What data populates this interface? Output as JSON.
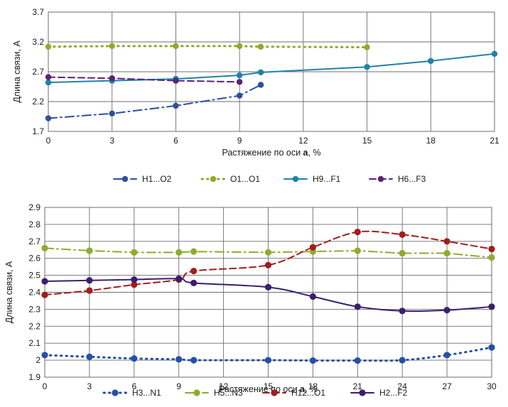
{
  "chart_data": [
    {
      "type": "line",
      "title": "",
      "xlabel_prefix": "Растяжение по оси ",
      "xlabel_axis": "a",
      "xlabel_suffix": ", %",
      "ylabel": "Длина связи, А",
      "xlim": [
        0,
        21
      ],
      "ylim": [
        1.7,
        3.7
      ],
      "xticks": [
        "0",
        "3",
        "6",
        "9",
        "12",
        "15",
        "18",
        "21"
      ],
      "yticks": [
        "1.7",
        "2.2",
        "2.7",
        "3.2",
        "3.7"
      ],
      "grid": true,
      "legend_position": "bottom",
      "series": [
        {
          "name": "H1...O2",
          "color": "#2e4f9e",
          "dash": "dashdot",
          "smooth": false,
          "x": [
            0,
            3,
            6,
            9,
            10
          ],
          "y": [
            1.92,
            2.0,
            2.13,
            2.3,
            2.48
          ]
        },
        {
          "name": "O1...O1",
          "color": "#8cac2c",
          "dash": "dot",
          "smooth": false,
          "x": [
            0,
            3,
            6,
            9,
            10,
            15
          ],
          "y": [
            3.12,
            3.13,
            3.13,
            3.13,
            3.12,
            3.11
          ]
        },
        {
          "name": "H9...F1",
          "color": "#1f82a9",
          "dash": "solid",
          "smooth": false,
          "x": [
            0,
            3,
            6,
            9,
            10,
            15,
            18,
            21
          ],
          "y": [
            2.52,
            2.55,
            2.58,
            2.64,
            2.69,
            2.78,
            2.88,
            3.0
          ]
        },
        {
          "name": "H6...F3",
          "color": "#5b2277",
          "dash": "dash",
          "smooth": false,
          "x": [
            0,
            3,
            6,
            9
          ],
          "y": [
            2.61,
            2.59,
            2.55,
            2.53
          ]
        }
      ]
    },
    {
      "type": "line",
      "title": "",
      "xlabel_prefix": "Растяжение по оси ",
      "xlabel_axis": "a",
      "xlabel_suffix": ", %",
      "ylabel": "Длина связи, А",
      "xlim": [
        0,
        30
      ],
      "ylim": [
        1.9,
        2.9
      ],
      "xticks": [
        "0",
        "3",
        "6",
        "9",
        "12",
        "15",
        "18",
        "21",
        "24",
        "27",
        "30"
      ],
      "yticks": [
        "1.9",
        "2",
        "2.1",
        "2.2",
        "2.3",
        "2.4",
        "2.5",
        "2.6",
        "2.7",
        "2.8",
        "2.9"
      ],
      "grid": true,
      "legend_position": "bottom",
      "series": [
        {
          "name": "H3...N1",
          "color": "#2450a8",
          "dash": "dot",
          "smooth": true,
          "x": [
            0,
            3,
            6,
            9,
            10,
            15,
            18,
            21,
            24,
            27,
            30
          ],
          "y": [
            2.03,
            2.02,
            2.01,
            2.005,
            2.0,
            2.0,
            1.998,
            1.998,
            2.0,
            2.03,
            2.075
          ]
        },
        {
          "name": "H5...N3",
          "color": "#8cac2c",
          "dash": "dashdot",
          "smooth": false,
          "x": [
            0,
            3,
            6,
            9,
            10,
            15,
            18,
            21,
            24,
            27,
            30
          ],
          "y": [
            2.66,
            2.645,
            2.635,
            2.635,
            2.64,
            2.635,
            2.64,
            2.645,
            2.63,
            2.63,
            2.605
          ]
        },
        {
          "name": "H12...O1",
          "color": "#a11d1d",
          "dash": "dash",
          "smooth": true,
          "x": [
            0,
            3,
            6,
            9,
            10,
            15,
            18,
            21,
            24,
            27,
            30
          ],
          "y": [
            2.385,
            2.41,
            2.445,
            2.475,
            2.525,
            2.56,
            2.665,
            2.755,
            2.74,
            2.7,
            2.655
          ]
        },
        {
          "name": "H2...F2",
          "color": "#3a1f6e",
          "dash": "solid",
          "smooth": true,
          "x": [
            0,
            3,
            6,
            9,
            10,
            15,
            18,
            21,
            24,
            27,
            30
          ],
          "y": [
            2.465,
            2.47,
            2.475,
            2.48,
            2.455,
            2.43,
            2.375,
            2.315,
            2.29,
            2.295,
            2.315
          ]
        }
      ]
    }
  ]
}
